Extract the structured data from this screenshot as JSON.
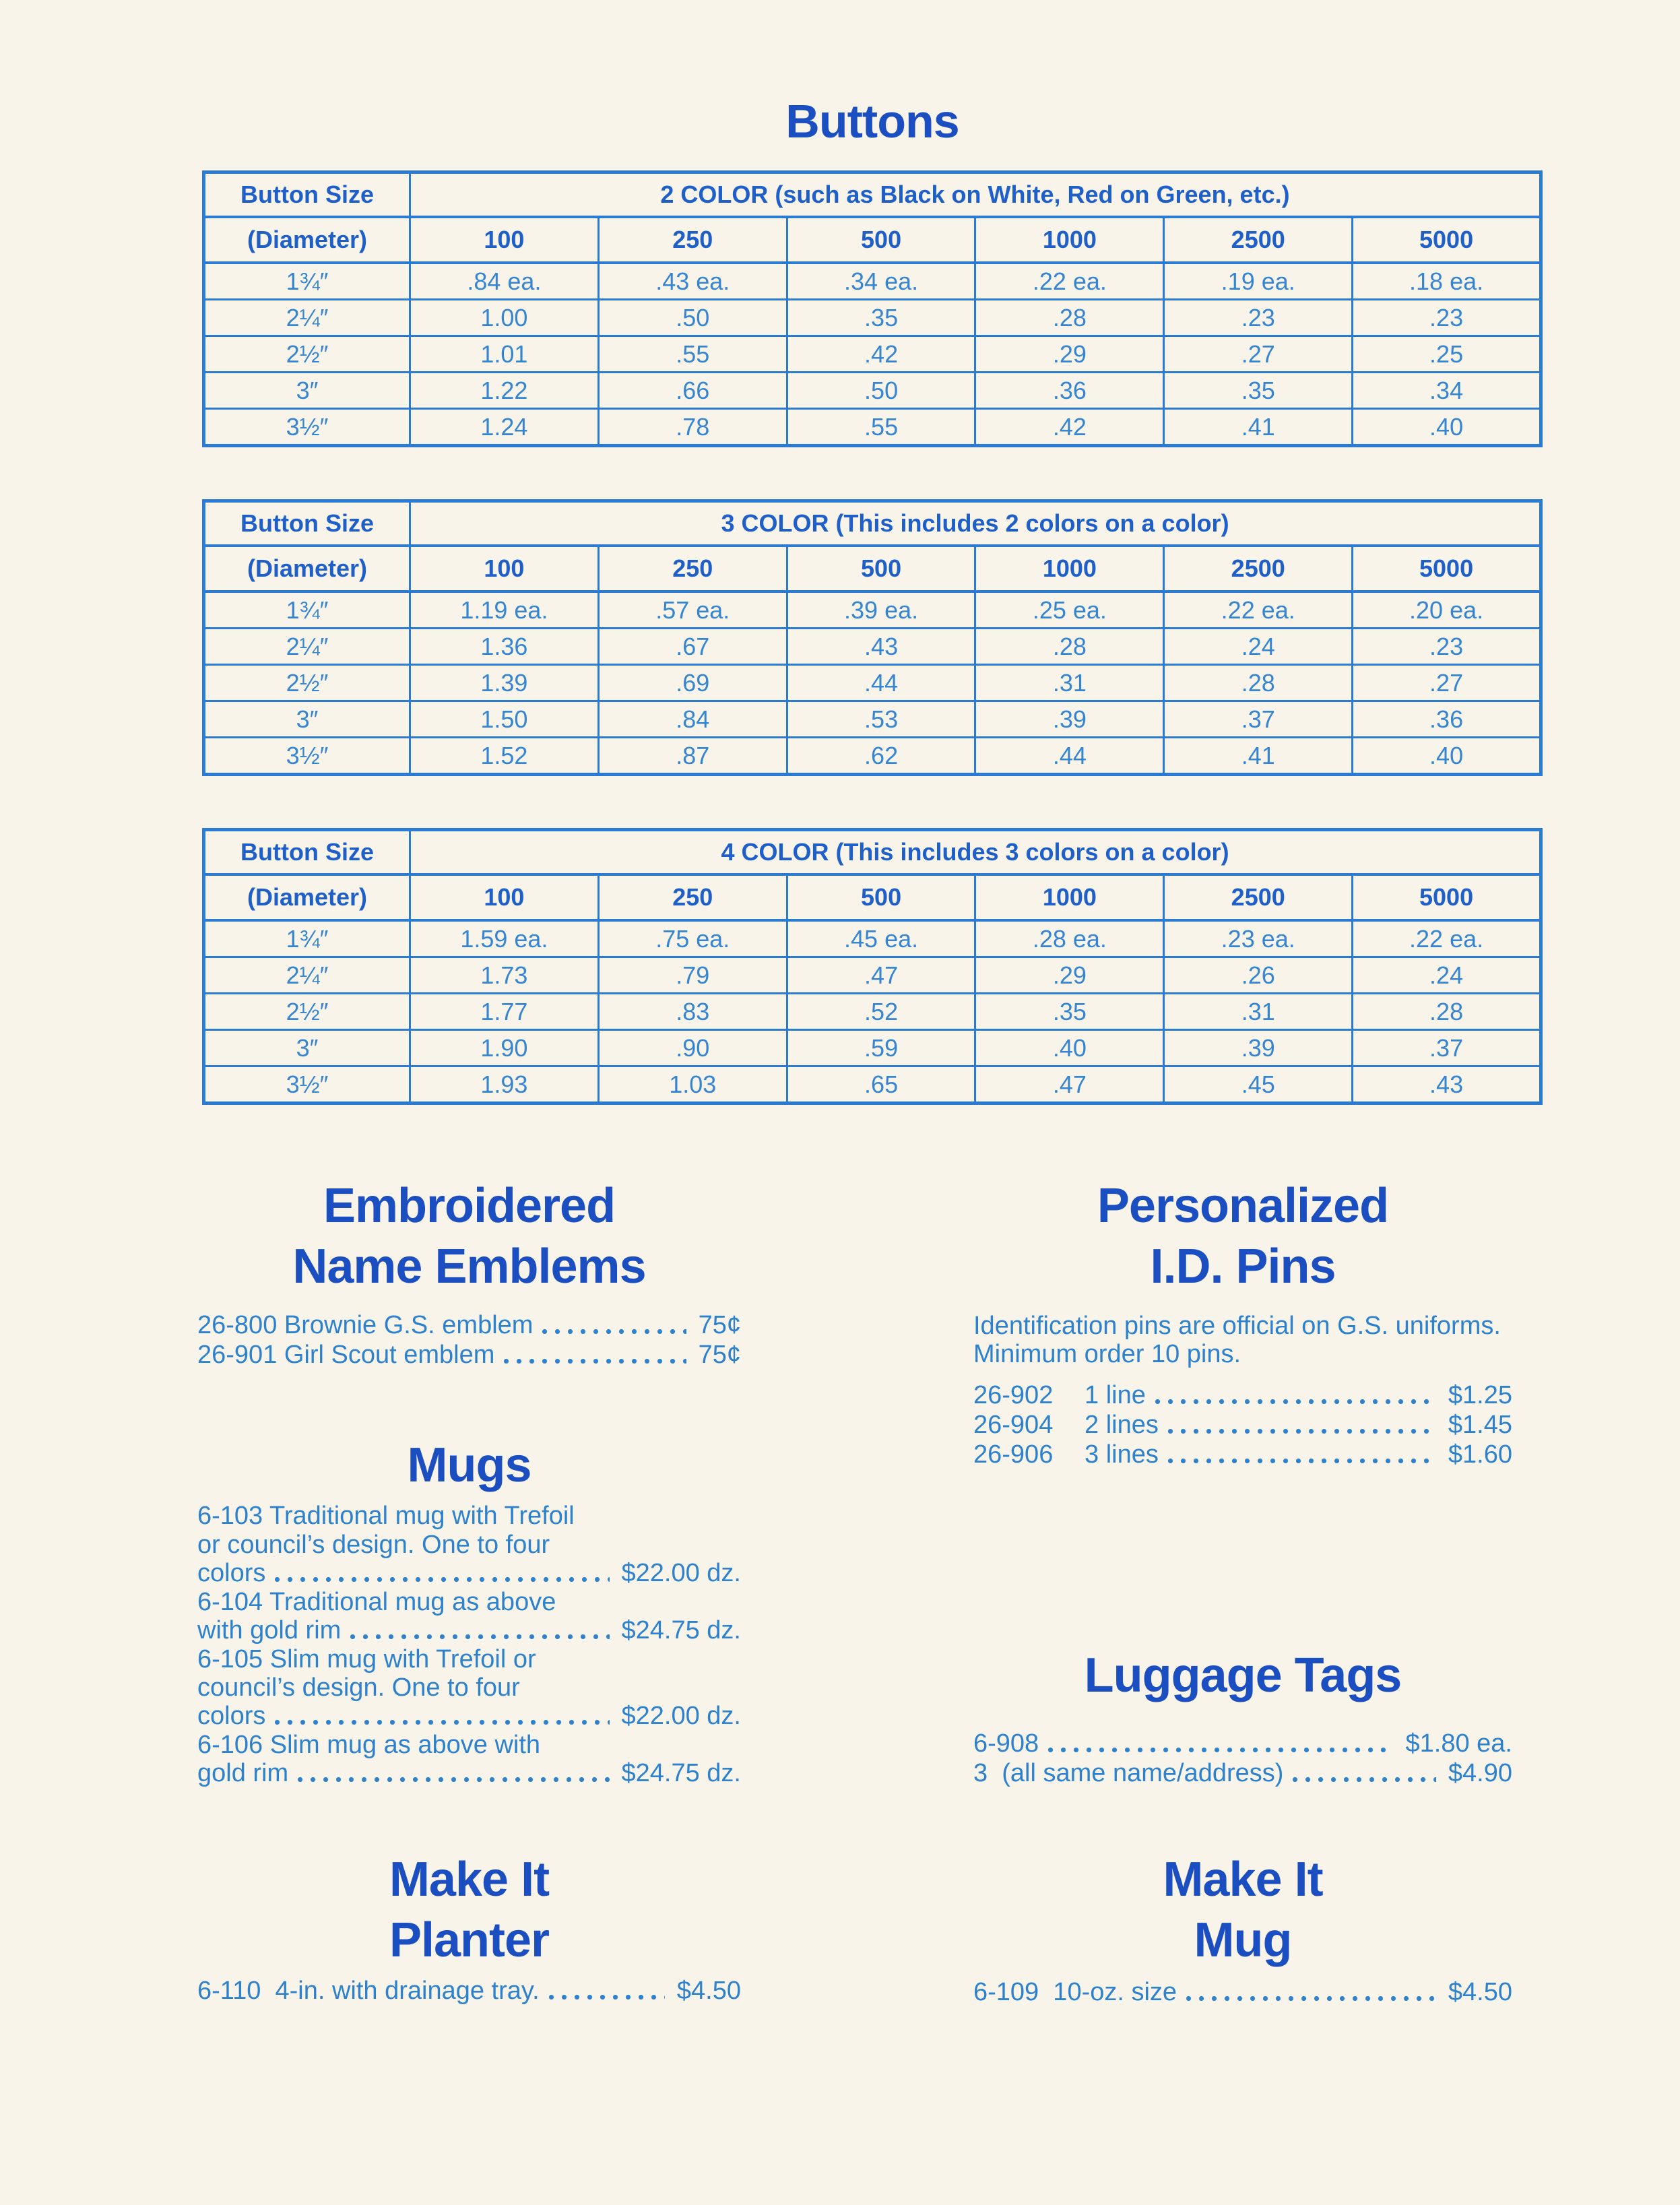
{
  "page": {
    "title": "Buttons",
    "colors": {
      "bg": "#f8f4e9",
      "heading": "#1b4fc1",
      "body": "#2e82cd",
      "border": "#2b7ad3",
      "thead": "#1e5fca",
      "tdata": "#3585d2"
    }
  },
  "tables": [
    {
      "size_header": "Button Size",
      "size_subheader": "(Diameter)",
      "color_header": "2 COLOR (such as Black on White, Red on Green, etc.)",
      "quantities": [
        "100",
        "250",
        "500",
        "1000",
        "2500",
        "5000"
      ],
      "rows": [
        {
          "size": "1¾″",
          "prices": [
            ".84 ea.",
            ".43 ea.",
            ".34 ea.",
            ".22 ea.",
            ".19 ea.",
            ".18 ea."
          ]
        },
        {
          "size": "2¼″",
          "prices": [
            "1.00",
            ".50",
            ".35",
            ".28",
            ".23",
            ".23"
          ]
        },
        {
          "size": "2½″",
          "prices": [
            "1.01",
            ".55",
            ".42",
            ".29",
            ".27",
            ".25"
          ]
        },
        {
          "size": "3″",
          "prices": [
            "1.22",
            ".66",
            ".50",
            ".36",
            ".35",
            ".34"
          ]
        },
        {
          "size": "3½″",
          "prices": [
            "1.24",
            ".78",
            ".55",
            ".42",
            ".41",
            ".40"
          ]
        }
      ]
    },
    {
      "size_header": "Button Size",
      "size_subheader": "(Diameter)",
      "color_header": "3 COLOR (This includes 2 colors on a color)",
      "quantities": [
        "100",
        "250",
        "500",
        "1000",
        "2500",
        "5000"
      ],
      "rows": [
        {
          "size": "1¾″",
          "prices": [
            "1.19 ea.",
            ".57 ea.",
            ".39 ea.",
            ".25 ea.",
            ".22 ea.",
            ".20 ea."
          ]
        },
        {
          "size": "2¼″",
          "prices": [
            "1.36",
            ".67",
            ".43",
            ".28",
            ".24",
            ".23"
          ]
        },
        {
          "size": "2½″",
          "prices": [
            "1.39",
            ".69",
            ".44",
            ".31",
            ".28",
            ".27"
          ]
        },
        {
          "size": "3″",
          "prices": [
            "1.50",
            ".84",
            ".53",
            ".39",
            ".37",
            ".36"
          ]
        },
        {
          "size": "3½″",
          "prices": [
            "1.52",
            ".87",
            ".62",
            ".44",
            ".41",
            ".40"
          ]
        }
      ]
    },
    {
      "size_header": "Button Size",
      "size_subheader": "(Diameter)",
      "color_header": "4 COLOR (This includes 3 colors on a color)",
      "quantities": [
        "100",
        "250",
        "500",
        "1000",
        "2500",
        "5000"
      ],
      "rows": [
        {
          "size": "1¾″",
          "prices": [
            "1.59 ea.",
            ".75 ea.",
            ".45 ea.",
            ".28 ea.",
            ".23 ea.",
            ".22 ea."
          ]
        },
        {
          "size": "2¼″",
          "prices": [
            "1.73",
            ".79",
            ".47",
            ".29",
            ".26",
            ".24"
          ]
        },
        {
          "size": "2½″",
          "prices": [
            "1.77",
            ".83",
            ".52",
            ".35",
            ".31",
            ".28"
          ]
        },
        {
          "size": "3″",
          "prices": [
            "1.90",
            ".90",
            ".59",
            ".40",
            ".39",
            ".37"
          ]
        },
        {
          "size": "3½″",
          "prices": [
            "1.93",
            "1.03",
            ".65",
            ".47",
            ".45",
            ".43"
          ]
        }
      ]
    }
  ],
  "sections": {
    "emblems": {
      "title_lines": [
        "Embroidered",
        "Name Emblems"
      ],
      "items": [
        {
          "label": "26-800 Brownie G.S. emblem",
          "price": "75¢"
        },
        {
          "label": "26-901 Girl Scout emblem",
          "price": "75¢"
        }
      ]
    },
    "id_pins": {
      "title_lines": [
        "Personalized",
        "I.D. Pins"
      ],
      "description_lines": [
        "Identification pins are official on G.S. uniforms.",
        "Minimum order 10 pins."
      ],
      "items": [
        {
          "code": "26-902",
          "desc": "1 line",
          "price": "$1.25"
        },
        {
          "code": "26-904",
          "desc": "2 lines",
          "price": "$1.45"
        },
        {
          "code": "26-906",
          "desc": "3 lines",
          "price": "$1.60"
        }
      ]
    },
    "mugs": {
      "title_lines": [
        "Mugs"
      ],
      "items": [
        {
          "lines": [
            "6-103 Traditional mug with Trefoil",
            "or council’s design. One to four"
          ],
          "last": "colors",
          "price": "$22.00 dz."
        },
        {
          "lines": [
            "6-104 Traditional mug as above"
          ],
          "last": "with gold rim",
          "price": "$24.75 dz."
        },
        {
          "lines": [
            "6-105 Slim mug with Trefoil or",
            "council’s design. One to four"
          ],
          "last": "colors",
          "price": "$22.00 dz."
        },
        {
          "lines": [
            "6-106 Slim mug as above with"
          ],
          "last": "gold rim",
          "price": "$24.75 dz."
        }
      ]
    },
    "luggage": {
      "title_lines": [
        "Luggage Tags"
      ],
      "items": [
        {
          "label": "6-908",
          "price": "$1.80 ea."
        },
        {
          "label": "3  (all same name/address)",
          "price": "$4.90"
        }
      ]
    },
    "planter": {
      "title_lines": [
        "Make It",
        "Planter"
      ],
      "items": [
        {
          "label": "6-110  4-in. with drainage tray.",
          "price": "$4.50"
        }
      ]
    },
    "make_mug": {
      "title_lines": [
        "Make It",
        "Mug"
      ],
      "items": [
        {
          "label": "6-109  10-oz. size",
          "price": "$4.50"
        }
      ]
    }
  }
}
